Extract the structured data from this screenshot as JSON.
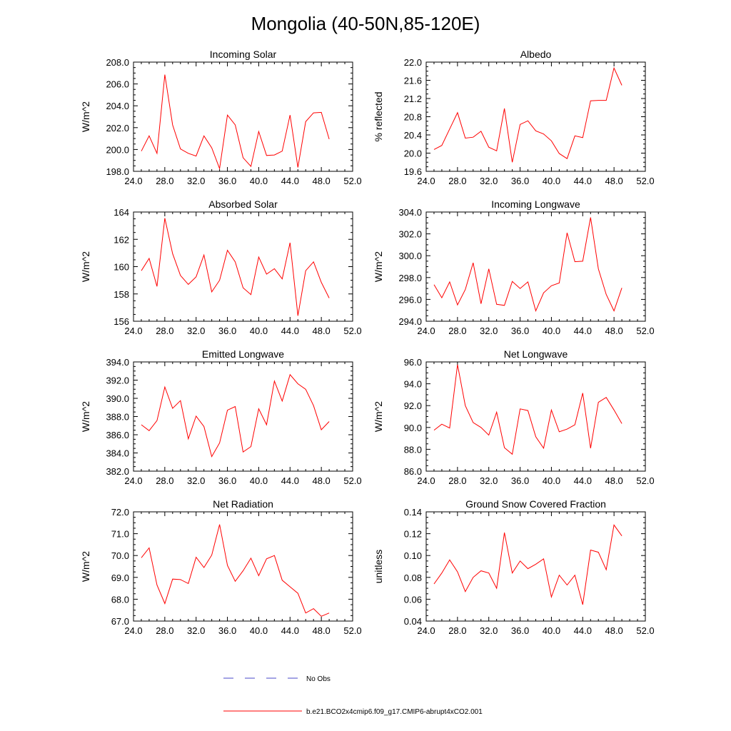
{
  "title": "Mongolia (40-50N,85-120E)",
  "chart_data": [
    {
      "type": "line",
      "title": "Incoming Solar",
      "ylabel": "W/m^2",
      "xlabel": "",
      "xlim": [
        24,
        52
      ],
      "ylim": [
        198,
        208
      ],
      "xticks": [
        "24.0",
        "28.0",
        "32.0",
        "36.0",
        "40.0",
        "44.0",
        "48.0",
        "52.0"
      ],
      "yticks": [
        "198.0",
        "200.0",
        "202.0",
        "204.0",
        "206.0",
        "208.0"
      ],
      "series": [
        {
          "color": "#ff0000",
          "x": [
            25,
            26,
            27,
            28,
            29,
            30,
            31,
            32,
            33,
            34,
            35,
            36,
            37,
            38,
            39,
            40,
            41,
            42,
            43,
            44,
            45,
            46,
            47,
            48,
            49
          ],
          "y": [
            199.85,
            201.25,
            199.65,
            206.85,
            202.25,
            200.05,
            199.65,
            199.4,
            201.25,
            200.15,
            198.25,
            203.15,
            202.25,
            199.25,
            198.45,
            201.65,
            199.45,
            199.5,
            199.85,
            203.15,
            198.35,
            202.55,
            203.35,
            203.4,
            200.95
          ]
        }
      ]
    },
    {
      "type": "line",
      "title": "Albedo",
      "ylabel": "% reflected",
      "xlabel": "",
      "xlim": [
        24,
        52
      ],
      "ylim": [
        19.6,
        22.0
      ],
      "xticks": [
        "24.0",
        "28.0",
        "32.0",
        "36.0",
        "40.0",
        "44.0",
        "48.0",
        "52.0"
      ],
      "yticks": [
        "19.6",
        "20.0",
        "20.4",
        "20.8",
        "21.2",
        "21.6",
        "22.0"
      ],
      "series": [
        {
          "color": "#ff0000",
          "x": [
            25,
            26,
            27,
            28,
            29,
            30,
            31,
            32,
            33,
            34,
            35,
            36,
            37,
            38,
            39,
            40,
            41,
            42,
            43,
            44,
            45,
            46,
            47,
            48,
            49
          ],
          "y": [
            20.08,
            20.17,
            20.53,
            20.89,
            20.33,
            20.35,
            20.48,
            20.13,
            20.05,
            20.98,
            19.8,
            20.63,
            20.71,
            20.49,
            20.42,
            20.27,
            19.99,
            19.88,
            20.38,
            20.34,
            21.15,
            21.16,
            21.16,
            21.87,
            21.49
          ]
        }
      ]
    },
    {
      "type": "line",
      "title": "Absorbed Solar",
      "ylabel": "W/m^2",
      "xlabel": "",
      "xlim": [
        24,
        52
      ],
      "ylim": [
        156,
        164
      ],
      "xticks": [
        "24.0",
        "28.0",
        "32.0",
        "36.0",
        "40.0",
        "44.0",
        "48.0",
        "52.0"
      ],
      "yticks": [
        "156",
        "158",
        "160",
        "162",
        "164"
      ],
      "series": [
        {
          "color": "#ff0000",
          "x": [
            25,
            26,
            27,
            28,
            29,
            30,
            31,
            32,
            33,
            34,
            35,
            36,
            37,
            38,
            39,
            40,
            41,
            42,
            43,
            44,
            45,
            46,
            47,
            48,
            49
          ],
          "y": [
            159.7,
            160.6,
            158.55,
            163.55,
            160.95,
            159.35,
            158.7,
            159.25,
            160.85,
            158.15,
            159.0,
            161.2,
            160.35,
            158.45,
            157.95,
            160.7,
            159.45,
            159.85,
            159.1,
            161.75,
            156.4,
            159.7,
            160.35,
            158.85,
            157.7
          ]
        }
      ]
    },
    {
      "type": "line",
      "title": "Incoming Longwave",
      "ylabel": "W/m^2",
      "xlabel": "",
      "xlim": [
        24,
        52
      ],
      "ylim": [
        294,
        304
      ],
      "xticks": [
        "24.0",
        "28.0",
        "32.0",
        "36.0",
        "40.0",
        "44.0",
        "48.0",
        "52.0"
      ],
      "yticks": [
        "294.0",
        "296.0",
        "298.0",
        "300.0",
        "302.0",
        "304.0"
      ],
      "series": [
        {
          "color": "#ff0000",
          "x": [
            25,
            26,
            27,
            28,
            29,
            30,
            31,
            32,
            33,
            34,
            35,
            36,
            37,
            38,
            39,
            40,
            41,
            42,
            43,
            44,
            45,
            46,
            47,
            48,
            49
          ],
          "y": [
            297.35,
            296.15,
            297.6,
            295.5,
            296.9,
            299.35,
            295.6,
            298.8,
            295.55,
            295.45,
            297.65,
            297.0,
            297.6,
            294.95,
            296.6,
            297.25,
            297.5,
            302.1,
            299.45,
            299.5,
            303.5,
            298.8,
            296.45,
            294.95,
            297.05
          ]
        }
      ]
    },
    {
      "type": "line",
      "title": "Emitted Longwave",
      "ylabel": "W/m^2",
      "xlabel": "",
      "xlim": [
        24,
        52
      ],
      "ylim": [
        382,
        394
      ],
      "xticks": [
        "24.0",
        "28.0",
        "32.0",
        "36.0",
        "40.0",
        "44.0",
        "48.0",
        "52.0"
      ],
      "yticks": [
        "382.0",
        "384.0",
        "386.0",
        "388.0",
        "390.0",
        "392.0",
        "394.0"
      ],
      "series": [
        {
          "color": "#ff0000",
          "x": [
            25,
            26,
            27,
            28,
            29,
            30,
            31,
            32,
            33,
            34,
            35,
            36,
            37,
            38,
            39,
            40,
            41,
            42,
            43,
            44,
            45,
            46,
            47,
            48,
            49
          ],
          "y": [
            387.1,
            386.45,
            387.55,
            391.25,
            388.9,
            389.75,
            385.55,
            388.05,
            386.9,
            383.6,
            385.1,
            388.7,
            389.1,
            384.1,
            384.7,
            388.85,
            387.1,
            391.9,
            389.7,
            392.6,
            391.6,
            391.0,
            389.2,
            386.55,
            387.45
          ]
        }
      ]
    },
    {
      "type": "line",
      "title": "Net Longwave",
      "ylabel": "W/m^2",
      "xlabel": "",
      "xlim": [
        24,
        52
      ],
      "ylim": [
        86,
        96
      ],
      "xticks": [
        "24.0",
        "28.0",
        "32.0",
        "36.0",
        "40.0",
        "44.0",
        "48.0",
        "52.0"
      ],
      "yticks": [
        "86.0",
        "88.0",
        "90.0",
        "92.0",
        "94.0",
        "96.0"
      ],
      "series": [
        {
          "color": "#ff0000",
          "x": [
            25,
            26,
            27,
            28,
            29,
            30,
            31,
            32,
            33,
            34,
            35,
            36,
            37,
            38,
            39,
            40,
            41,
            42,
            43,
            44,
            45,
            46,
            47,
            48,
            49
          ],
          "y": [
            89.75,
            90.3,
            89.95,
            95.75,
            92.0,
            90.45,
            90.0,
            89.3,
            91.4,
            88.15,
            87.55,
            91.7,
            91.55,
            89.15,
            88.1,
            91.6,
            89.6,
            89.85,
            90.25,
            93.15,
            88.1,
            92.3,
            92.75,
            91.6,
            90.35
          ]
        }
      ]
    },
    {
      "type": "line",
      "title": "Net Radiation",
      "ylabel": "W/m^2",
      "xlabel": "",
      "xlim": [
        24,
        52
      ],
      "ylim": [
        67,
        72
      ],
      "xticks": [
        "24.0",
        "28.0",
        "32.0",
        "36.0",
        "40.0",
        "44.0",
        "48.0",
        "52.0"
      ],
      "yticks": [
        "67.0",
        "68.0",
        "69.0",
        "70.0",
        "71.0",
        "72.0"
      ],
      "series": [
        {
          "color": "#ff0000",
          "x": [
            25,
            26,
            27,
            28,
            29,
            30,
            31,
            32,
            33,
            34,
            35,
            36,
            37,
            38,
            39,
            40,
            41,
            42,
            43,
            44,
            45,
            46,
            47,
            48,
            49
          ],
          "y": [
            69.9,
            70.35,
            68.65,
            67.8,
            68.92,
            68.9,
            68.72,
            69.92,
            69.45,
            70.02,
            71.42,
            69.55,
            68.82,
            69.3,
            69.88,
            69.08,
            69.85,
            70.0,
            68.87,
            68.57,
            68.27,
            67.37,
            67.57,
            67.22,
            67.37
          ]
        }
      ]
    },
    {
      "type": "line",
      "title": "Ground Snow Covered Fraction",
      "ylabel": "unitless",
      "xlabel": "",
      "xlim": [
        24,
        52
      ],
      "ylim": [
        0.04,
        0.14
      ],
      "xticks": [
        "24.0",
        "28.0",
        "32.0",
        "36.0",
        "40.0",
        "44.0",
        "48.0",
        "52.0"
      ],
      "yticks": [
        "0.04",
        "0.06",
        "0.08",
        "0.10",
        "0.12",
        "0.14"
      ],
      "series": [
        {
          "color": "#ff0000",
          "x": [
            25,
            26,
            27,
            28,
            29,
            30,
            31,
            32,
            33,
            34,
            35,
            36,
            37,
            38,
            39,
            40,
            41,
            42,
            43,
            44,
            45,
            46,
            47,
            48,
            49
          ],
          "y": [
            0.074,
            0.084,
            0.096,
            0.085,
            0.067,
            0.08,
            0.086,
            0.084,
            0.07,
            0.121,
            0.084,
            0.095,
            0.088,
            0.092,
            0.097,
            0.062,
            0.082,
            0.073,
            0.082,
            0.055,
            0.105,
            0.103,
            0.087,
            0.128,
            0.118
          ]
        }
      ]
    }
  ],
  "legend": [
    {
      "label": "No Obs",
      "color": "#4a4ac8",
      "style": "dashed"
    },
    {
      "label": "b.e21.BCO2x4cmip6.f09_g17.CMIP6-abrupt4xCO2.001",
      "color": "#ff0000",
      "style": "solid"
    }
  ]
}
